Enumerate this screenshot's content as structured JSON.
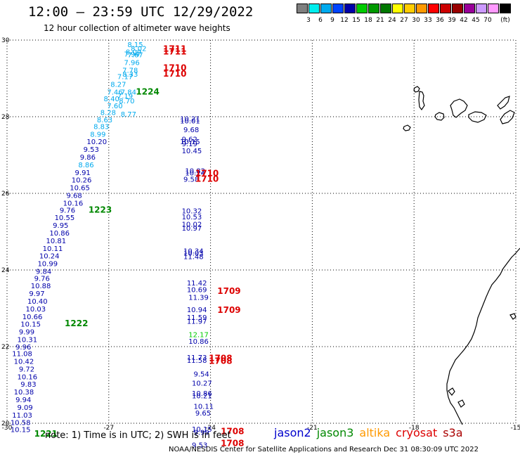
{
  "header": {
    "title": "12:00 — 23:59 UTC 12/29/2022",
    "subtitle": "12 hour collection of altimeter wave heights"
  },
  "colorbar": {
    "unit_label": "(ft)",
    "bins": [
      {
        "label": "",
        "color": "#7f7f7f"
      },
      {
        "label": "3",
        "color": "#00eeee"
      },
      {
        "label": "6",
        "color": "#00aaee"
      },
      {
        "label": "9",
        "color": "#0044ff"
      },
      {
        "label": "12",
        "color": "#0000aa"
      },
      {
        "label": "15",
        "color": "#00cc00"
      },
      {
        "label": "18",
        "color": "#009900"
      },
      {
        "label": "21",
        "color": "#007700"
      },
      {
        "label": "24",
        "color": "#ffff00"
      },
      {
        "label": "27",
        "color": "#ffcc00"
      },
      {
        "label": "30",
        "color": "#ff9900"
      },
      {
        "label": "33",
        "color": "#ff0000"
      },
      {
        "label": "36",
        "color": "#cc0000"
      },
      {
        "label": "39",
        "color": "#990000"
      },
      {
        "label": "42",
        "color": "#990099"
      },
      {
        "label": "45",
        "color": "#cc99ff"
      },
      {
        "label": "70",
        "color": "#ff99ff"
      },
      {
        "label": "",
        "color": "#000000"
      }
    ]
  },
  "map": {
    "lon_range": [
      -30,
      -15
    ],
    "lat_range": [
      20,
      30
    ],
    "lon_ticks": [
      {
        "v": -30,
        "label": "-30"
      },
      {
        "v": -27,
        "label": "-27"
      },
      {
        "v": -24,
        "label": "-24"
      },
      {
        "v": -21,
        "label": "-21"
      },
      {
        "v": -18,
        "label": "-18"
      },
      {
        "v": -15,
        "label": "-15"
      }
    ],
    "lat_ticks": [
      {
        "v": 20,
        "label": "20"
      },
      {
        "v": 22,
        "label": "22"
      },
      {
        "v": 24,
        "label": "24"
      },
      {
        "v": 26,
        "label": "26"
      },
      {
        "v": 28,
        "label": "28"
      },
      {
        "v": 30,
        "label": "30"
      }
    ],
    "grid": true
  },
  "tracks": {
    "diagonal_jason3": [
      {
        "lon": -26.45,
        "lat": 29.82,
        "wh": "8.15",
        "c": "#00aaee"
      },
      {
        "lon": -26.35,
        "lat": 29.72,
        "wh": "8.02",
        "c": "#00aaee"
      },
      {
        "lon": -26.5,
        "lat": 29.62,
        "wh": "8.09",
        "c": "#00aaee"
      },
      {
        "lon": -26.55,
        "lat": 29.57,
        "wh": "7.94",
        "c": "#00aaee"
      },
      {
        "lon": -26.45,
        "lat": 29.55,
        "wh": "7.67",
        "c": "#00aaee"
      },
      {
        "lon": -26.55,
        "lat": 29.35,
        "wh": "7.96",
        "c": "#00aaee"
      },
      {
        "lon": -26.6,
        "lat": 29.15,
        "wh": "7.78",
        "c": "#00aaee"
      },
      {
        "lon": -26.6,
        "lat": 29.05,
        "wh": "8.33",
        "c": "#00aaee"
      },
      {
        "lon": -26.75,
        "lat": 28.98,
        "wh": "7.17",
        "c": "#00aaee"
      },
      {
        "lon": -26.95,
        "lat": 28.78,
        "wh": "8.27",
        "c": "#00aaee"
      },
      {
        "lon": -27.05,
        "lat": 28.58,
        "wh": "7.46",
        "c": "#00aaee"
      },
      {
        "lon": -26.65,
        "lat": 28.58,
        "wh": "7.84",
        "c": "#00aaee"
      },
      {
        "lon": -26.75,
        "lat": 28.48,
        "wh": "7.19",
        "c": "#00aaee"
      },
      {
        "lon": -27.15,
        "lat": 28.4,
        "wh": "8.40",
        "c": "#00aaee"
      },
      {
        "lon": -26.7,
        "lat": 28.35,
        "wh": "8.70",
        "c": "#00aaee"
      },
      {
        "lon": -27.05,
        "lat": 28.22,
        "wh": "7.60",
        "c": "#00aaee"
      },
      {
        "lon": -27.25,
        "lat": 28.05,
        "wh": "8.28",
        "c": "#00aaee"
      },
      {
        "lon": -26.65,
        "lat": 28.0,
        "wh": "8.77",
        "c": "#00aaee"
      },
      {
        "lon": -27.35,
        "lat": 27.85,
        "wh": "8.63",
        "c": "#00aaee"
      },
      {
        "lon": -27.45,
        "lat": 27.68,
        "wh": "8.83",
        "c": "#00aaee"
      },
      {
        "lon": -27.55,
        "lat": 27.48,
        "wh": "8.99",
        "c": "#00aaee"
      },
      {
        "lon": -27.65,
        "lat": 27.28,
        "wh": "10.20",
        "c": "#0000aa"
      },
      {
        "lon": -27.75,
        "lat": 27.08,
        "wh": "9.53",
        "c": "#0000aa"
      },
      {
        "lon": -27.85,
        "lat": 26.88,
        "wh": "9.86",
        "c": "#0000aa"
      },
      {
        "lon": -27.9,
        "lat": 26.68,
        "wh": "8.86",
        "c": "#00aaee"
      },
      {
        "lon": -28.0,
        "lat": 26.48,
        "wh": "9.91",
        "c": "#0000aa"
      },
      {
        "lon": -28.1,
        "lat": 26.28,
        "wh": "10.26",
        "c": "#0000aa"
      },
      {
        "lon": -28.15,
        "lat": 26.08,
        "wh": "10.65",
        "c": "#0000aa"
      },
      {
        "lon": -28.25,
        "lat": 25.88,
        "wh": "9.68",
        "c": "#0000aa"
      },
      {
        "lon": -28.35,
        "lat": 25.68,
        "wh": "10.16",
        "c": "#0000aa"
      },
      {
        "lon": -28.45,
        "lat": 25.5,
        "wh": "9.76",
        "c": "#0000aa"
      },
      {
        "lon": -28.6,
        "lat": 25.3,
        "wh": "10.55",
        "c": "#0000aa"
      },
      {
        "lon": -28.65,
        "lat": 25.1,
        "wh": "9.95",
        "c": "#0000aa"
      },
      {
        "lon": -28.75,
        "lat": 24.9,
        "wh": "10.86",
        "c": "#0000aa"
      },
      {
        "lon": -28.85,
        "lat": 24.7,
        "wh": "10.81",
        "c": "#0000aa"
      },
      {
        "lon": -28.95,
        "lat": 24.5,
        "wh": "10.11",
        "c": "#0000aa"
      },
      {
        "lon": -29.05,
        "lat": 24.3,
        "wh": "10.24",
        "c": "#0000aa"
      },
      {
        "lon": -29.1,
        "lat": 24.1,
        "wh": "10.99",
        "c": "#0000aa"
      },
      {
        "lon": -29.15,
        "lat": 23.9,
        "wh": "9.84",
        "c": "#0000aa"
      },
      {
        "lon": -29.2,
        "lat": 23.72,
        "wh": "9.76",
        "c": "#0000aa"
      },
      {
        "lon": -29.3,
        "lat": 23.52,
        "wh": "10.88",
        "c": "#0000aa"
      },
      {
        "lon": -29.35,
        "lat": 23.32,
        "wh": "9.97",
        "c": "#0000aa"
      },
      {
        "lon": -29.4,
        "lat": 23.12,
        "wh": "10.40",
        "c": "#0000aa"
      },
      {
        "lon": -29.45,
        "lat": 22.92,
        "wh": "10.03",
        "c": "#0000aa"
      },
      {
        "lon": -29.55,
        "lat": 22.72,
        "wh": "10.66",
        "c": "#0000aa"
      },
      {
        "lon": -29.6,
        "lat": 22.52,
        "wh": "10.15",
        "c": "#0000aa"
      },
      {
        "lon": -29.65,
        "lat": 22.32,
        "wh": "9.99",
        "c": "#0000aa"
      },
      {
        "lon": -29.7,
        "lat": 22.12,
        "wh": "10.31",
        "c": "#0000aa"
      },
      {
        "lon": -29.75,
        "lat": 21.93,
        "wh": "9.96",
        "c": "#0000aa"
      },
      {
        "lon": -29.85,
        "lat": 21.75,
        "wh": "11.08",
        "c": "#0000aa"
      },
      {
        "lon": -29.8,
        "lat": 21.55,
        "wh": "10.42",
        "c": "#0000aa"
      },
      {
        "lon": -29.65,
        "lat": 21.35,
        "wh": "9.72",
        "c": "#0000aa"
      },
      {
        "lon": -29.7,
        "lat": 21.15,
        "wh": "10.16",
        "c": "#0000aa"
      },
      {
        "lon": -29.6,
        "lat": 20.95,
        "wh": "9.83",
        "c": "#0000aa"
      },
      {
        "lon": -29.8,
        "lat": 20.75,
        "wh": "10.38",
        "c": "#0000aa"
      },
      {
        "lon": -29.75,
        "lat": 20.55,
        "wh": "9.94",
        "c": "#0000aa"
      },
      {
        "lon": -29.7,
        "lat": 20.35,
        "wh": "9.09",
        "c": "#0000aa"
      },
      {
        "lon": -29.85,
        "lat": 20.15,
        "wh": "11.03",
        "c": "#0000aa"
      },
      {
        "lon": -29.9,
        "lat": 19.95,
        "wh": "10.58",
        "c": "#0000aa"
      },
      {
        "lon": -29.9,
        "lat": 19.77,
        "wh": "10.15",
        "c": "#0000aa"
      }
    ],
    "vertical_track": [
      {
        "lon": -24.9,
        "lat": 27.88,
        "wh": "10.21",
        "c": "#0000aa"
      },
      {
        "lon": -24.9,
        "lat": 27.83,
        "wh": "10.01",
        "c": "#0000aa"
      },
      {
        "lon": -24.8,
        "lat": 27.6,
        "wh": "9.68",
        "c": "#0000aa"
      },
      {
        "lon": -24.85,
        "lat": 27.35,
        "wh": "9.62",
        "c": "#0000aa"
      },
      {
        "lon": -24.9,
        "lat": 27.28,
        "wh": "10.15",
        "c": "#0000aa"
      },
      {
        "lon": -24.85,
        "lat": 27.23,
        "wh": "9.19",
        "c": "#0000aa"
      },
      {
        "lon": -24.85,
        "lat": 27.05,
        "wh": "10.45",
        "c": "#0000aa"
      },
      {
        "lon": -24.75,
        "lat": 26.52,
        "wh": "10.82",
        "c": "#0000aa"
      },
      {
        "lon": -24.75,
        "lat": 26.47,
        "wh": "10.24",
        "c": "#0000aa"
      },
      {
        "lon": -24.8,
        "lat": 26.3,
        "wh": "9.58",
        "c": "#0000aa"
      },
      {
        "lon": -24.85,
        "lat": 25.48,
        "wh": "10.32",
        "c": "#0000aa"
      },
      {
        "lon": -24.85,
        "lat": 25.32,
        "wh": "10.53",
        "c": "#0000aa"
      },
      {
        "lon": -24.85,
        "lat": 25.13,
        "wh": "10.02",
        "c": "#0000aa"
      },
      {
        "lon": -24.85,
        "lat": 25.03,
        "wh": "10.97",
        "c": "#0000aa"
      },
      {
        "lon": -24.8,
        "lat": 24.43,
        "wh": "10.34",
        "c": "#0000aa"
      },
      {
        "lon": -24.8,
        "lat": 24.38,
        "wh": "10.03",
        "c": "#0000aa"
      },
      {
        "lon": -24.8,
        "lat": 24.28,
        "wh": "11.48",
        "c": "#0000aa"
      },
      {
        "lon": -24.7,
        "lat": 23.6,
        "wh": "11.42",
        "c": "#0000aa"
      },
      {
        "lon": -24.7,
        "lat": 23.42,
        "wh": "10.69",
        "c": "#0000aa"
      },
      {
        "lon": -24.65,
        "lat": 23.22,
        "wh": "11.39",
        "c": "#0000aa"
      },
      {
        "lon": -24.7,
        "lat": 22.9,
        "wh": "10.94",
        "c": "#0000aa"
      },
      {
        "lon": -24.7,
        "lat": 22.7,
        "wh": "11.59",
        "c": "#0000aa"
      },
      {
        "lon": -24.7,
        "lat": 22.6,
        "wh": "11.97",
        "c": "#0000aa"
      },
      {
        "lon": -24.65,
        "lat": 22.25,
        "wh": "12.17",
        "c": "#00cc00"
      },
      {
        "lon": -24.65,
        "lat": 22.07,
        "wh": "10.86",
        "c": "#0000aa"
      },
      {
        "lon": -24.7,
        "lat": 21.65,
        "wh": "11.73",
        "c": "#0000aa"
      },
      {
        "lon": -24.7,
        "lat": 21.58,
        "wh": "11.58",
        "c": "#0000aa"
      },
      {
        "lon": -24.5,
        "lat": 21.22,
        "wh": "9.54",
        "c": "#0000aa"
      },
      {
        "lon": -24.55,
        "lat": 20.98,
        "wh": "10.27",
        "c": "#0000aa"
      },
      {
        "lon": -24.55,
        "lat": 20.72,
        "wh": "10.86",
        "c": "#0000aa"
      },
      {
        "lon": -24.55,
        "lat": 20.65,
        "wh": "10.21",
        "c": "#0000aa"
      },
      {
        "lon": -24.5,
        "lat": 20.38,
        "wh": "10.11",
        "c": "#0000aa"
      },
      {
        "lon": -24.45,
        "lat": 20.2,
        "wh": "9.65",
        "c": "#0000aa"
      },
      {
        "lon": -24.55,
        "lat": 19.78,
        "wh": "10.15",
        "c": "#0000aa"
      },
      {
        "lon": -24.5,
        "lat": 19.7,
        "wh": "9.99",
        "c": "#0000aa"
      },
      {
        "lon": -24.55,
        "lat": 19.37,
        "wh": "9.53",
        "c": "#0000aa"
      }
    ]
  },
  "time_labels": [
    {
      "lon": -25.4,
      "lat": 29.7,
      "text": "1711",
      "c": "#dd0000"
    },
    {
      "lon": -25.4,
      "lat": 29.62,
      "text": "1711",
      "c": "#dd0000"
    },
    {
      "lon": -25.4,
      "lat": 29.2,
      "text": "1710",
      "c": "#dd0000"
    },
    {
      "lon": -25.4,
      "lat": 29.05,
      "text": "1710",
      "c": "#dd0000"
    },
    {
      "lon": -26.2,
      "lat": 28.58,
      "text": "1224",
      "c": "#008800"
    },
    {
      "lon": -24.45,
      "lat": 26.45,
      "text": "1710",
      "c": "#dd0000"
    },
    {
      "lon": -24.45,
      "lat": 26.3,
      "text": "1710",
      "c": "#dd0000"
    },
    {
      "lon": -27.6,
      "lat": 25.5,
      "text": "1223",
      "c": "#008800"
    },
    {
      "lon": -23.8,
      "lat": 23.38,
      "text": "1709",
      "c": "#dd0000"
    },
    {
      "lon": -23.8,
      "lat": 22.88,
      "text": "1709",
      "c": "#dd0000"
    },
    {
      "lon": -28.3,
      "lat": 22.53,
      "text": "1222",
      "c": "#008800"
    },
    {
      "lon": -24.05,
      "lat": 21.62,
      "text": "1708",
      "c": "#dd0000"
    },
    {
      "lon": -24.05,
      "lat": 21.55,
      "text": "1708",
      "c": "#dd0000"
    },
    {
      "lon": -23.7,
      "lat": 19.72,
      "text": "1708",
      "c": "#dd0000"
    },
    {
      "lon": -23.7,
      "lat": 19.4,
      "text": "1708",
      "c": "#dd0000"
    },
    {
      "lon": -29.2,
      "lat": 19.65,
      "text": "1221",
      "c": "#008800"
    }
  ],
  "note": "note: 1) Time is in UTC; 2) SWH is in feet",
  "legend": [
    {
      "label": "jason2",
      "color": "#0000cc"
    },
    {
      "label": "jason3",
      "color": "#008800"
    },
    {
      "label": "altika",
      "color": "#ff9900"
    },
    {
      "label": "cryosat",
      "color": "#dd0000"
    },
    {
      "label": "s3a",
      "color": "#aa0000"
    }
  ],
  "credit": "NOAA/NESDIS Center for Satellite Applications and Research    Dec 31 08:30:09 UTC 2022"
}
